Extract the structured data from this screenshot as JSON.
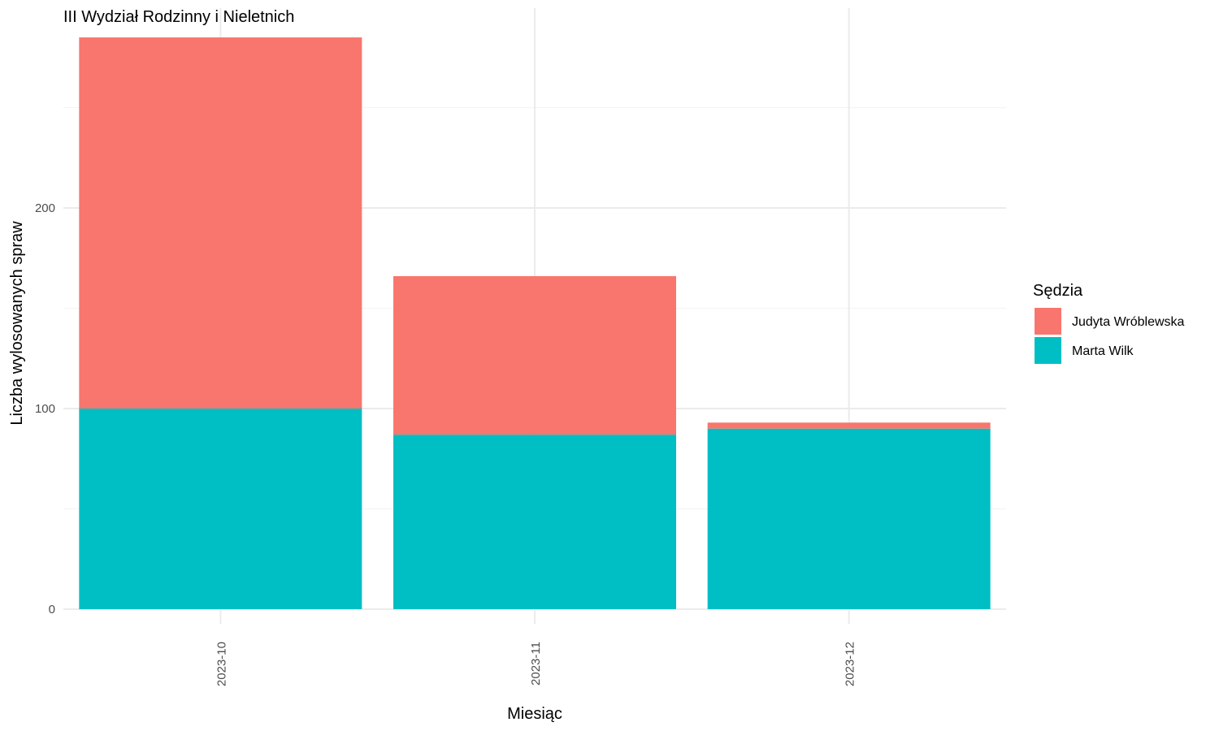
{
  "chart_data": {
    "type": "bar",
    "stacked": true,
    "title": "III Wydział Rodzinny i Nieletnich",
    "xlabel": "Miesiąc",
    "ylabel": "Liczba wylosowanych spraw",
    "categories": [
      "2023-10",
      "2023-11",
      "2023-12"
    ],
    "series": [
      {
        "name": "Judyta Wróblewska",
        "color": "#F8766D",
        "values": [
          185,
          79,
          3
        ]
      },
      {
        "name": "Marta Wilk",
        "color": "#00BFC4",
        "values": [
          100,
          87,
          90
        ]
      }
    ],
    "ylim": [
      0,
      300
    ],
    "yticks": [
      0,
      100,
      200
    ],
    "grid": true,
    "legend": {
      "title": "Sędzia",
      "position": "right"
    }
  }
}
